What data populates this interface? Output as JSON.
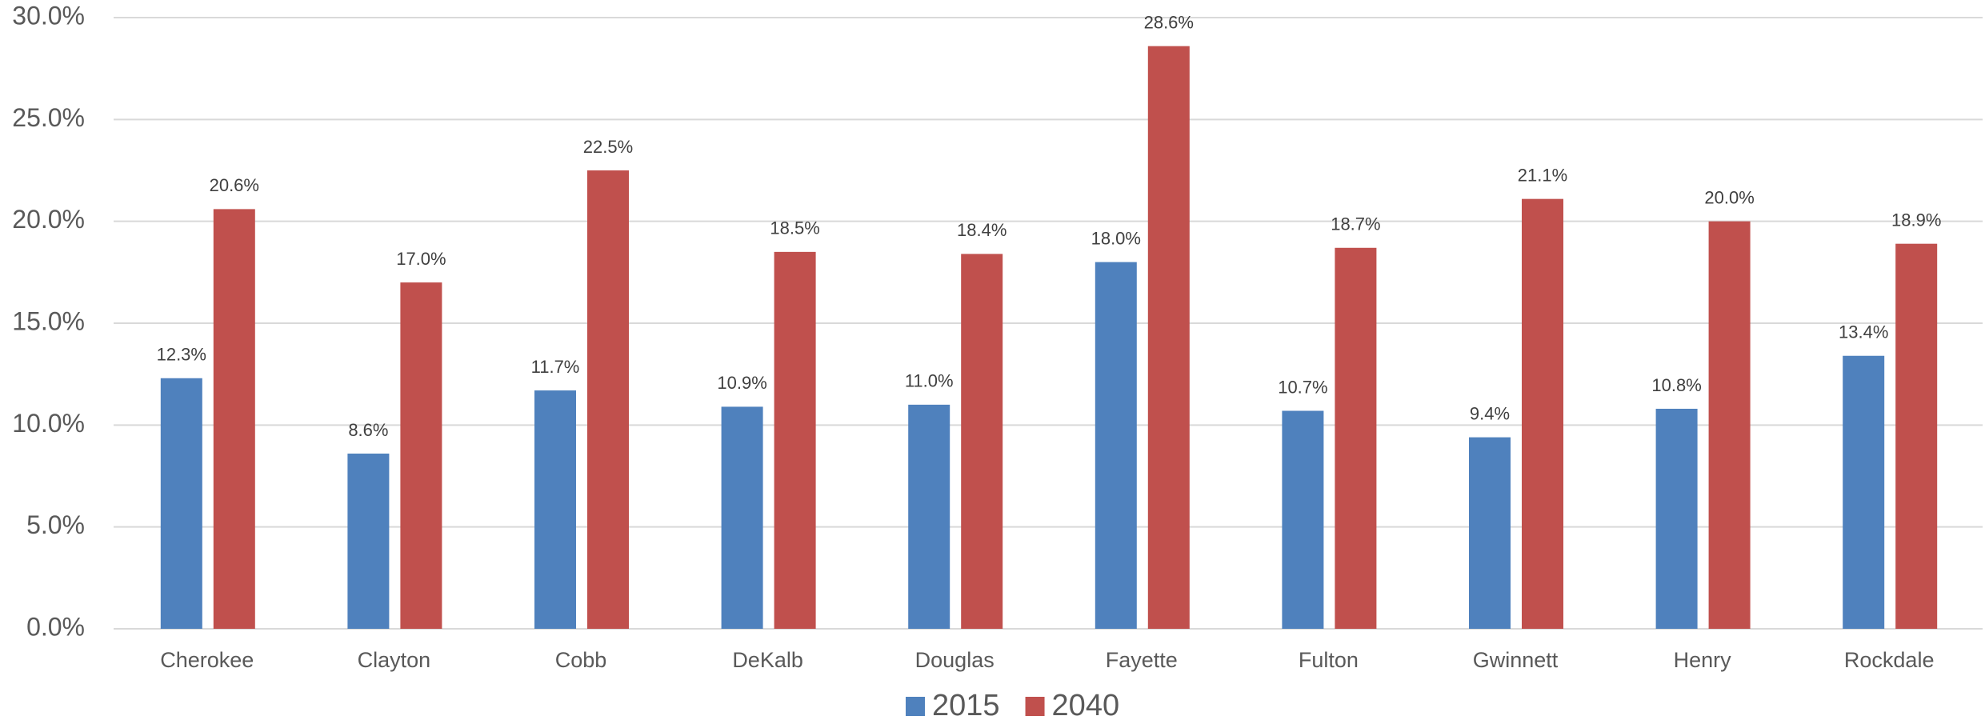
{
  "chart_data": {
    "type": "bar",
    "categories": [
      "Cherokee",
      "Clayton",
      "Cobb",
      "DeKalb",
      "Douglas",
      "Fayette",
      "Fulton",
      "Gwinnett",
      "Henry",
      "Rockdale"
    ],
    "series": [
      {
        "name": "2015",
        "color": "#4f81bd",
        "values": [
          12.3,
          8.6,
          11.7,
          10.9,
          11.0,
          18.0,
          10.7,
          9.4,
          10.8,
          13.4
        ],
        "value_labels": [
          "12.3%",
          "8.6%",
          "11.7%",
          "10.9%",
          "11.0%",
          "18.0%",
          "10.7%",
          "9.4%",
          "10.8%",
          "13.4%"
        ]
      },
      {
        "name": "2040",
        "color": "#c0504d",
        "values": [
          20.6,
          17.0,
          22.5,
          18.5,
          18.4,
          28.6,
          18.7,
          21.1,
          20.0,
          18.9
        ],
        "value_labels": [
          "20.6%",
          "17.0%",
          "22.5%",
          "18.5%",
          "18.4%",
          "28.6%",
          "18.7%",
          "21.1%",
          "20.0%",
          "18.9%"
        ]
      }
    ],
    "ylim": [
      0,
      30
    ],
    "yticks": [
      {
        "value": 0,
        "label": "0.0%"
      },
      {
        "value": 5,
        "label": "5.0%"
      },
      {
        "value": 10,
        "label": "10.0%"
      },
      {
        "value": 15,
        "label": "15.0%"
      },
      {
        "value": 20,
        "label": "20.0%"
      },
      {
        "value": 25,
        "label": "25.0%"
      },
      {
        "value": 30,
        "label": "30.0%"
      }
    ],
    "grid": true,
    "legend": "bottom"
  }
}
